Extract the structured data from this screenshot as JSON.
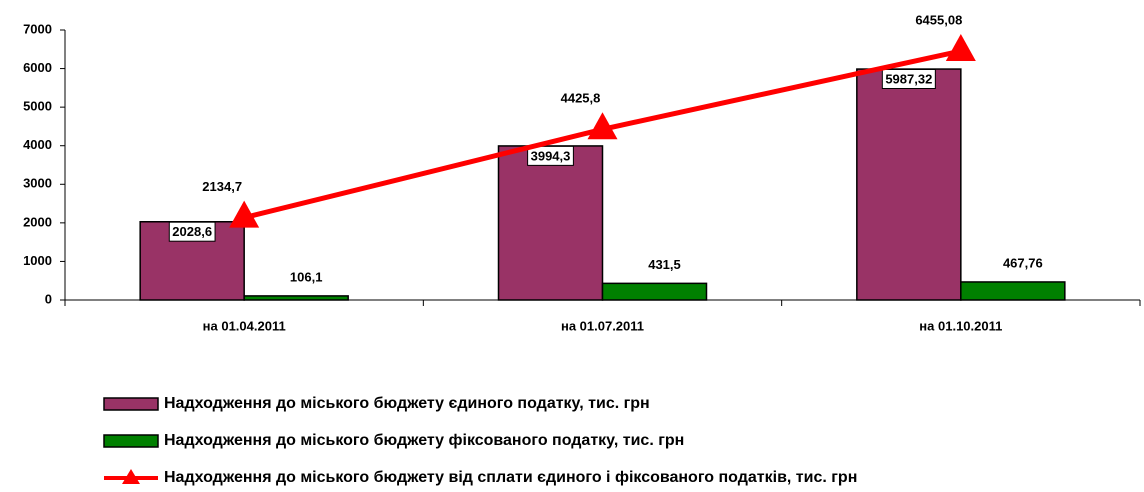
{
  "chart_data": {
    "type": "bar",
    "categories": [
      "на 01.04.2011",
      "на 01.07.2011",
      "на 01.10.2011"
    ],
    "series": [
      {
        "name": "Надходження до міського бюджету єдиного податку, тис. грн",
        "color": "#993366",
        "type": "bar",
        "values": [
          2028.6,
          3994.3,
          5987.32
        ],
        "value_labels": [
          "2028,6",
          "3994,3",
          "5987,32"
        ]
      },
      {
        "name": "Надходження до міського бюджету фіксованого податку, тис. грн",
        "color": "#008000",
        "type": "bar",
        "values": [
          106.1,
          431.5,
          467.76
        ],
        "value_labels": [
          "106,1",
          "431,5",
          "467,76"
        ]
      },
      {
        "name": "Надходження до міського бюджету від сплати єдиного і фіксованого податків, тис. грн",
        "color": "#ff0000",
        "type": "line",
        "values": [
          2134.7,
          4425.8,
          6455.08
        ],
        "value_labels": [
          "2134,7",
          "4425,8",
          "6455,08"
        ]
      }
    ],
    "ylim": [
      0,
      7000
    ],
    "yticks": [
      0,
      1000,
      2000,
      3000,
      4000,
      5000,
      6000,
      7000
    ],
    "grid": false,
    "legend": "bottom"
  }
}
